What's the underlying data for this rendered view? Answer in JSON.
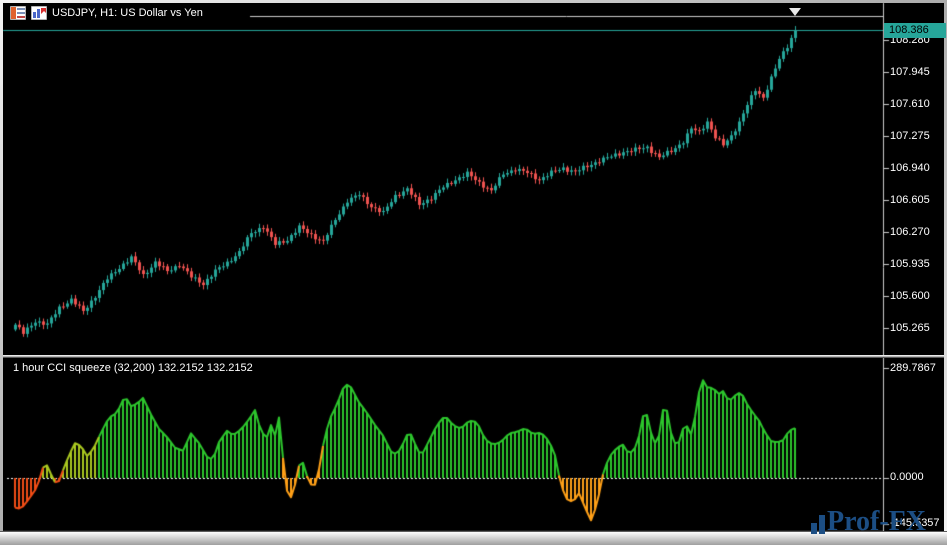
{
  "window": {
    "title": "USDJPY, H1: US Dollar vs Yen",
    "title_icons": [
      "quotes-table-icon",
      "chart-icon"
    ]
  },
  "colors": {
    "background": "#000000",
    "frame_lines": "#cdcdcd",
    "label_text": "#ffffff",
    "bull_candle": "#26a69a",
    "bear_candle": "#ef5350",
    "bid_line": "#26a69a",
    "current_price_bg": "#26a69a",
    "current_price_text": "#000000",
    "cci_green": "#2dc62d",
    "cci_yellow_green": "#aac820",
    "cci_orange": "#ffa018",
    "cci_red_orange": "#f24d16",
    "zero_line": "#ffffff",
    "watermark_blue": "#1c4e84"
  },
  "price_axis": {
    "current": "108.386",
    "ticks": [
      "108.280",
      "107.945",
      "107.610",
      "107.275",
      "106.940",
      "106.605",
      "106.270",
      "105.935",
      "105.600",
      "105.265"
    ]
  },
  "indicator": {
    "label": "1 hour CCI squeeze (32,200) 132.2152 132.2152",
    "axis": {
      "max": "289.7867",
      "zero": "0.0000",
      "min": "-145.5357"
    }
  },
  "watermark": {
    "text": "Prof-FX"
  },
  "chart_data": [
    {
      "type": "candlestick",
      "symbol": "USDJPY",
      "timeframe": "H1",
      "description": "US Dollar vs Yen",
      "current_price": 108.386,
      "ylim": [
        105.1,
        108.45
      ],
      "y_ticks": [
        108.28,
        107.945,
        107.61,
        107.275,
        106.94,
        106.605,
        106.27,
        105.935,
        105.6,
        105.265
      ],
      "n_candles": 196,
      "anchor_format": "[candle_index, close] - close path read off chart; intermediate candles interpolated",
      "close_anchors": [
        [
          0,
          105.3
        ],
        [
          2,
          105.21
        ],
        [
          5,
          105.34
        ],
        [
          8,
          105.3
        ],
        [
          11,
          105.48
        ],
        [
          14,
          105.56
        ],
        [
          17,
          105.44
        ],
        [
          20,
          105.6
        ],
        [
          23,
          105.78
        ],
        [
          26,
          105.9
        ],
        [
          29,
          106.0
        ],
        [
          32,
          105.82
        ],
        [
          35,
          105.95
        ],
        [
          38,
          105.86
        ],
        [
          41,
          105.93
        ],
        [
          44,
          105.8
        ],
        [
          47,
          105.73
        ],
        [
          50,
          105.86
        ],
        [
          53,
          105.95
        ],
        [
          56,
          106.06
        ],
        [
          59,
          106.26
        ],
        [
          62,
          106.33
        ],
        [
          65,
          106.14
        ],
        [
          68,
          106.19
        ],
        [
          71,
          106.32
        ],
        [
          74,
          106.24
        ],
        [
          77,
          106.17
        ],
        [
          80,
          106.4
        ],
        [
          83,
          106.6
        ],
        [
          86,
          106.66
        ],
        [
          89,
          106.54
        ],
        [
          92,
          106.47
        ],
        [
          95,
          106.65
        ],
        [
          98,
          106.72
        ],
        [
          101,
          106.56
        ],
        [
          104,
          106.63
        ],
        [
          107,
          106.74
        ],
        [
          110,
          106.82
        ],
        [
          113,
          106.88
        ],
        [
          116,
          106.79
        ],
        [
          119,
          106.7
        ],
        [
          122,
          106.88
        ],
        [
          125,
          106.93
        ],
        [
          128,
          106.89
        ],
        [
          131,
          106.82
        ],
        [
          134,
          106.89
        ],
        [
          137,
          106.94
        ],
        [
          140,
          106.9
        ],
        [
          143,
          106.96
        ],
        [
          146,
          107.02
        ],
        [
          149,
          107.06
        ],
        [
          152,
          107.11
        ],
        [
          155,
          107.13
        ],
        [
          158,
          107.16
        ],
        [
          161,
          107.05
        ],
        [
          164,
          107.12
        ],
        [
          167,
          107.22
        ],
        [
          169,
          107.35
        ],
        [
          171,
          107.32
        ],
        [
          173,
          107.43
        ],
        [
          175,
          107.26
        ],
        [
          177,
          107.18
        ],
        [
          179,
          107.28
        ],
        [
          181,
          107.42
        ],
        [
          183,
          107.6
        ],
        [
          185,
          107.76
        ],
        [
          187,
          107.68
        ],
        [
          189,
          107.88
        ],
        [
          191,
          108.08
        ],
        [
          193,
          108.22
        ],
        [
          195,
          108.386
        ]
      ]
    },
    {
      "type": "bar",
      "name": "1 hour CCI squeeze",
      "params": "(32,200)",
      "current_values": [
        132.2152,
        132.2152
      ],
      "y_axis": {
        "max": 289.7867,
        "zero": 0.0,
        "min": -145.5357
      },
      "zero_line_style": "dashed",
      "anchor_format": "[candle_index, value, color_key] - histogram envelope read off chart",
      "color_key": {
        "g": "green",
        "y": "yellow-green",
        "o": "orange",
        "r": "red-orange"
      },
      "anchors": [
        [
          0,
          -78,
          "r"
        ],
        [
          1.5,
          -82,
          "r"
        ],
        [
          3.5,
          -55,
          "r"
        ],
        [
          5.5,
          -25,
          "r"
        ],
        [
          7.5,
          45,
          "y"
        ],
        [
          9,
          10,
          "y"
        ],
        [
          10.5,
          -22,
          "r"
        ],
        [
          12,
          20,
          "y"
        ],
        [
          13.5,
          60,
          "y"
        ],
        [
          15,
          92,
          "y"
        ],
        [
          16.5,
          85,
          "y"
        ],
        [
          18,
          58,
          "y"
        ],
        [
          19.5,
          75,
          "y"
        ],
        [
          21.5,
          120,
          "g"
        ],
        [
          23.5,
          160,
          "g"
        ],
        [
          25.5,
          172,
          "g"
        ],
        [
          27.5,
          218,
          "g"
        ],
        [
          29,
          190,
          "g"
        ],
        [
          30.5,
          196,
          "g"
        ],
        [
          32,
          212,
          "g"
        ],
        [
          34,
          168,
          "g"
        ],
        [
          36,
          130,
          "g"
        ],
        [
          38,
          108,
          "g"
        ],
        [
          40,
          80,
          "g"
        ],
        [
          42,
          72,
          "g"
        ],
        [
          44,
          118,
          "g"
        ],
        [
          46,
          92,
          "g"
        ],
        [
          48,
          56,
          "g"
        ],
        [
          49.5,
          48,
          "g"
        ],
        [
          51,
          95,
          "g"
        ],
        [
          53,
          125,
          "g"
        ],
        [
          54.5,
          113,
          "g"
        ],
        [
          56.5,
          128,
          "g"
        ],
        [
          58.5,
          155,
          "g"
        ],
        [
          60,
          180,
          "g"
        ],
        [
          61.5,
          122,
          "g"
        ],
        [
          63,
          108,
          "g"
        ],
        [
          64,
          140,
          "g"
        ],
        [
          65,
          112,
          "g"
        ],
        [
          66,
          160,
          "g"
        ],
        [
          67.5,
          0,
          "o"
        ],
        [
          68.5,
          -67,
          "o"
        ],
        [
          70,
          -18,
          "o"
        ],
        [
          71.5,
          58,
          "g"
        ],
        [
          73,
          5,
          "o"
        ],
        [
          74.5,
          -28,
          "o"
        ],
        [
          75.5,
          -8,
          "o"
        ],
        [
          77,
          85,
          "g"
        ],
        [
          78.5,
          152,
          "g"
        ],
        [
          80.5,
          195,
          "g"
        ],
        [
          82.5,
          250,
          "g"
        ],
        [
          84,
          240,
          "g"
        ],
        [
          86,
          200,
          "g"
        ],
        [
          88,
          172,
          "g"
        ],
        [
          90,
          140,
          "g"
        ],
        [
          92,
          112,
          "g"
        ],
        [
          94,
          70,
          "g"
        ],
        [
          95.5,
          62,
          "g"
        ],
        [
          97.5,
          100,
          "g"
        ],
        [
          98.5,
          128,
          "g"
        ],
        [
          100,
          90,
          "g"
        ],
        [
          101.5,
          57,
          "g"
        ],
        [
          103.5,
          98,
          "g"
        ],
        [
          105.5,
          140,
          "g"
        ],
        [
          107.5,
          165,
          "g"
        ],
        [
          109.5,
          140,
          "g"
        ],
        [
          111.5,
          130,
          "g"
        ],
        [
          113.5,
          152,
          "g"
        ],
        [
          115.5,
          148,
          "g"
        ],
        [
          117.5,
          102,
          "g"
        ],
        [
          119.5,
          88,
          "g"
        ],
        [
          121.5,
          95,
          "g"
        ],
        [
          123.5,
          118,
          "g"
        ],
        [
          125.5,
          122,
          "g"
        ],
        [
          127.5,
          132,
          "g"
        ],
        [
          129.5,
          116,
          "g"
        ],
        [
          131.5,
          120,
          "g"
        ],
        [
          133.5,
          98,
          "g"
        ],
        [
          135,
          60,
          "g"
        ],
        [
          136.5,
          -20,
          "o"
        ],
        [
          138,
          -56,
          "o"
        ],
        [
          139.5,
          -64,
          "o"
        ],
        [
          141,
          -40,
          "o"
        ],
        [
          142.5,
          -78,
          "o"
        ],
        [
          144,
          -112,
          "o"
        ],
        [
          145.5,
          -70,
          "o"
        ],
        [
          147,
          10,
          "g"
        ],
        [
          148.5,
          55,
          "g"
        ],
        [
          150.5,
          80,
          "g"
        ],
        [
          152,
          88,
          "g"
        ],
        [
          153.5,
          62,
          "g"
        ],
        [
          155.5,
          85,
          "g"
        ],
        [
          157.5,
          190,
          "g"
        ],
        [
          159,
          120,
          "g"
        ],
        [
          160.5,
          78,
          "g"
        ],
        [
          162,
          180,
          "g"
        ],
        [
          163,
          178,
          "g"
        ],
        [
          164.5,
          90,
          "g"
        ],
        [
          166,
          95,
          "g"
        ],
        [
          167.5,
          148,
          "g"
        ],
        [
          169,
          115,
          "g"
        ],
        [
          170.5,
          185,
          "g"
        ],
        [
          171.5,
          268,
          "g"
        ],
        [
          173,
          240,
          "g"
        ],
        [
          174.5,
          238,
          "g"
        ],
        [
          176,
          222,
          "g"
        ],
        [
          177,
          230,
          "g"
        ],
        [
          178.5,
          202,
          "g"
        ],
        [
          180,
          218,
          "g"
        ],
        [
          181.5,
          228,
          "g"
        ],
        [
          183,
          196,
          "g"
        ],
        [
          184.5,
          172,
          "g"
        ],
        [
          186,
          152,
          "g"
        ],
        [
          187.5,
          120,
          "g"
        ],
        [
          189,
          98,
          "g"
        ],
        [
          190.5,
          94,
          "g"
        ],
        [
          192,
          100,
          "g"
        ],
        [
          193.5,
          125,
          "g"
        ],
        [
          195,
          132,
          "g"
        ]
      ]
    }
  ]
}
